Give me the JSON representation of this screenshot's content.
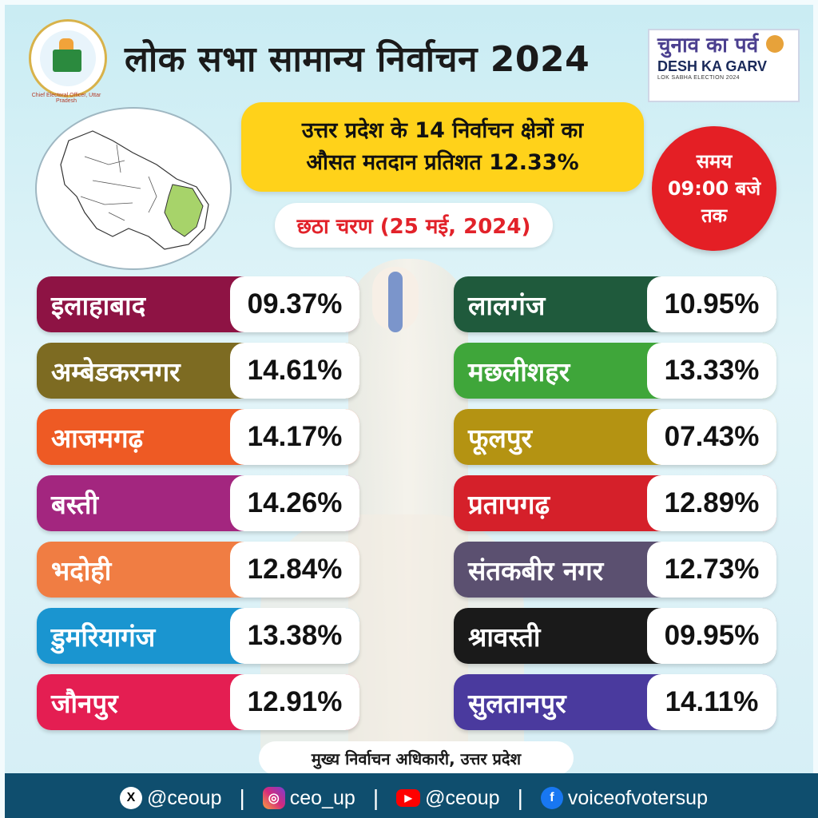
{
  "header": {
    "title": "लोक सभा सामान्य निर्वाचन 2024",
    "logo_ring_text": "Chief Electoral Officer, Uttar Pradesh",
    "campaign_hi": "चुनाव का पर्व",
    "campaign_en": "DESH KA GARV",
    "campaign_sub": "LOK SABHA ELECTION 2024"
  },
  "summary": {
    "line1": "उत्तर प्रदेश के 14 निर्वाचन क्षेत्रों का",
    "line2": "औसत मतदान प्रतिशत 12.33%"
  },
  "time": {
    "line1": "समय",
    "line2": "09:00 बजे",
    "line3": "तक"
  },
  "phase": "छठा चरण (25 मई, 2024)",
  "left_rows": [
    {
      "name": "इलाहाबाद",
      "pct": "09.37%",
      "color": "#8e1344"
    },
    {
      "name": "अम्बेडकरनगर",
      "pct": "14.61%",
      "color": "#7d6b22"
    },
    {
      "name": "आजमगढ़",
      "pct": "14.17%",
      "color": "#ee5a24"
    },
    {
      "name": "बस्ती",
      "pct": "14.26%",
      "color": "#a3267f"
    },
    {
      "name": "भदोही",
      "pct": "12.84%",
      "color": "#f07d43"
    },
    {
      "name": "डुमरियागंज",
      "pct": "13.38%",
      "color": "#1a95d0"
    },
    {
      "name": "जौनपुर",
      "pct": "12.91%",
      "color": "#e41e52"
    }
  ],
  "right_rows": [
    {
      "name": "लालगंज",
      "pct": "10.95%",
      "color": "#1f5a3c"
    },
    {
      "name": "मछलीशहर",
      "pct": "13.33%",
      "color": "#3fa63a"
    },
    {
      "name": "फूलपुर",
      "pct": "07.43%",
      "color": "#b49312"
    },
    {
      "name": "प्रतापगढ़",
      "pct": "12.89%",
      "color": "#d5202a"
    },
    {
      "name": "संतकबीर नगर",
      "pct": "12.73%",
      "color": "#5b5070"
    },
    {
      "name": "श्रावस्ती",
      "pct": "09.95%",
      "color": "#1a1a1a"
    },
    {
      "name": "सुलतानपुर",
      "pct": "14.11%",
      "color": "#4a3a9e"
    }
  ],
  "footer": {
    "officer": "मुख्य निर्वाचन अधिकारी, उत्तर प्रदेश",
    "x_handle": "@ceoup",
    "instagram_handle": "ceo_up",
    "youtube_handle": "@ceoup",
    "facebook_handle": "voiceofvotersup"
  },
  "icons": [
    "x-icon",
    "instagram-icon",
    "youtube-icon",
    "facebook-icon"
  ]
}
